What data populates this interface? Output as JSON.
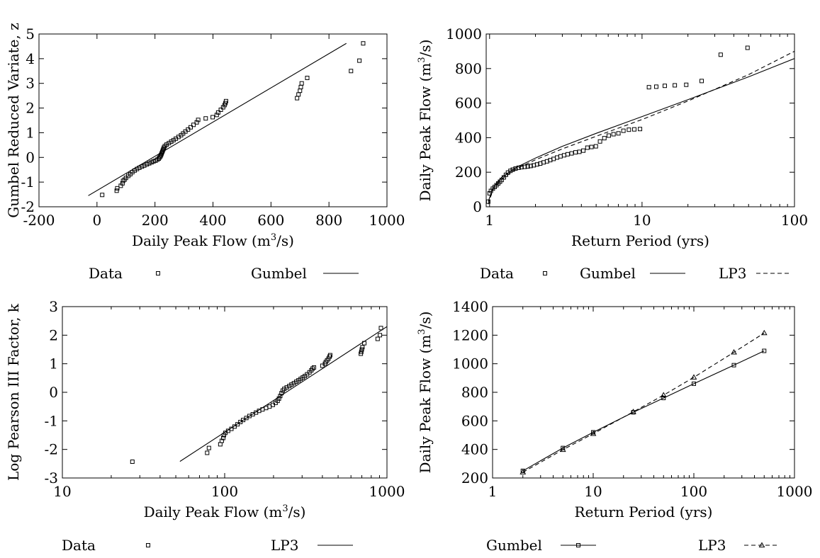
{
  "chart_data": [
    {
      "type": "scatter",
      "xlabel": "Daily Peak Flow (m³/s)",
      "ylabel": "Gumbel Reduced Variate, z",
      "xlim": [
        -200,
        1000
      ],
      "ylim": [
        -2,
        5
      ],
      "x_scale": "linear",
      "y_scale": "linear",
      "xticks": [
        -200,
        0,
        200,
        400,
        600,
        800,
        1000
      ],
      "yticks": [
        -2,
        -1,
        0,
        1,
        2,
        3,
        4,
        5
      ],
      "xtick_labels": [
        "-200",
        "0",
        "200",
        "400",
        "600",
        "800",
        "1000"
      ],
      "ytick_labels": [
        "-2",
        "-1",
        "0",
        "1",
        "2",
        "3",
        "4",
        "5"
      ],
      "grid": false,
      "legend_position": "below",
      "series": [
        {
          "name": "Data",
          "marker": "square",
          "points": [
            [
              18,
              -1.52
            ],
            [
              68,
              -1.35
            ],
            [
              70,
              -1.25
            ],
            [
              82,
              -1.15
            ],
            [
              88,
              -1.05
            ],
            [
              90,
              -0.95
            ],
            [
              95,
              -0.9
            ],
            [
              100,
              -0.83
            ],
            [
              108,
              -0.75
            ],
            [
              115,
              -0.68
            ],
            [
              122,
              -0.6
            ],
            [
              130,
              -0.53
            ],
            [
              138,
              -0.47
            ],
            [
              146,
              -0.42
            ],
            [
              155,
              -0.37
            ],
            [
              163,
              -0.33
            ],
            [
              172,
              -0.28
            ],
            [
              180,
              -0.24
            ],
            [
              188,
              -0.2
            ],
            [
              195,
              -0.16
            ],
            [
              202,
              -0.13
            ],
            [
              208,
              -0.09
            ],
            [
              213,
              -0.05
            ],
            [
              216,
              0.0
            ],
            [
              219,
              0.05
            ],
            [
              221,
              0.1
            ],
            [
              223,
              0.16
            ],
            [
              225,
              0.22
            ],
            [
              227,
              0.28
            ],
            [
              229,
              0.34
            ],
            [
              231,
              0.4
            ],
            [
              234,
              0.46
            ],
            [
              240,
              0.52
            ],
            [
              248,
              0.58
            ],
            [
              256,
              0.64
            ],
            [
              264,
              0.7
            ],
            [
              272,
              0.76
            ],
            [
              281,
              0.83
            ],
            [
              290,
              0.9
            ],
            [
              297,
              0.97
            ],
            [
              305,
              1.05
            ],
            [
              314,
              1.13
            ],
            [
              323,
              1.22
            ],
            [
              333,
              1.32
            ],
            [
              344,
              1.42
            ],
            [
              349,
              1.52
            ],
            [
              375,
              1.58
            ],
            [
              399,
              1.63
            ],
            [
              413,
              1.72
            ],
            [
              418,
              1.82
            ],
            [
              427,
              1.93
            ],
            [
              435,
              2.03
            ],
            [
              440,
              2.12
            ],
            [
              443,
              2.2
            ],
            [
              445,
              2.28
            ],
            [
              690,
              2.4
            ],
            [
              695,
              2.55
            ],
            [
              700,
              2.7
            ],
            [
              703,
              2.85
            ],
            [
              706,
              3.0
            ],
            [
              725,
              3.22
            ],
            [
              876,
              3.5
            ],
            [
              905,
              3.92
            ],
            [
              918,
              4.62
            ]
          ]
        },
        {
          "name": "Gumbel",
          "style": "solid",
          "x": [
            -30,
            860
          ],
          "y": [
            -1.55,
            4.62
          ]
        }
      ]
    },
    {
      "type": "scatter",
      "xlabel": "Return Period (yrs)",
      "ylabel": "Daily Peak Flow (m³/s)",
      "xlim": [
        0.95,
        100
      ],
      "ylim": [
        0,
        1000
      ],
      "x_scale": "log",
      "y_scale": "linear",
      "xticks": [
        1,
        10,
        100
      ],
      "yticks": [
        0,
        200,
        400,
        600,
        800,
        1000
      ],
      "xtick_labels": [
        "1",
        "10",
        "100"
      ],
      "ytick_labels": [
        "0",
        "200",
        "400",
        "600",
        "800",
        "1000"
      ],
      "grid": false,
      "legend_position": "below",
      "series": [
        {
          "name": "Data",
          "marker": "square",
          "points": [
            [
              0.98,
              30
            ],
            [
              1.0,
              78
            ],
            [
              1.02,
              92
            ],
            [
              1.05,
              105
            ],
            [
              1.08,
              115
            ],
            [
              1.11,
              125
            ],
            [
              1.14,
              135
            ],
            [
              1.17,
              145
            ],
            [
              1.2,
              155
            ],
            [
              1.24,
              170
            ],
            [
              1.28,
              185
            ],
            [
              1.32,
              198
            ],
            [
              1.37,
              208
            ],
            [
              1.42,
              215
            ],
            [
              1.48,
              221
            ],
            [
              1.55,
              226
            ],
            [
              1.62,
              229
            ],
            [
              1.7,
              231
            ],
            [
              1.78,
              233
            ],
            [
              1.86,
              236
            ],
            [
              1.95,
              240
            ],
            [
              2.05,
              245
            ],
            [
              2.15,
              250
            ],
            [
              2.26,
              257
            ],
            [
              2.38,
              263
            ],
            [
              2.5,
              270
            ],
            [
              2.63,
              277
            ],
            [
              2.77,
              285
            ],
            [
              2.92,
              292
            ],
            [
              3.08,
              298
            ],
            [
              3.25,
              304
            ],
            [
              3.45,
              309
            ],
            [
              3.66,
              315
            ],
            [
              3.88,
              318
            ],
            [
              4.12,
              325
            ],
            [
              4.38,
              342
            ],
            [
              4.66,
              346
            ],
            [
              4.98,
              350
            ],
            [
              5.3,
              378
            ],
            [
              5.66,
              397
            ],
            [
              6.05,
              412
            ],
            [
              6.5,
              420
            ],
            [
              7.0,
              425
            ],
            [
              7.55,
              440
            ],
            [
              8.2,
              446
            ],
            [
              8.9,
              448
            ],
            [
              9.7,
              450
            ],
            [
              11.1,
              692
            ],
            [
              12.4,
              695
            ],
            [
              14.1,
              700
            ],
            [
              16.4,
              703
            ],
            [
              19.5,
              706
            ],
            [
              24.6,
              728
            ],
            [
              32.8,
              880
            ],
            [
              49.2,
              920
            ]
          ]
        },
        {
          "name": "Gumbel",
          "style": "solid",
          "x": [
            0.98,
            1.05,
            1.2,
            1.5,
            2,
            3,
            5,
            10,
            20,
            50,
            100
          ],
          "y": [
            30,
            108,
            170,
            228,
            282,
            350,
            425,
            522,
            620,
            752,
            858
          ]
        },
        {
          "name": "LP3",
          "style": "dashed",
          "x": [
            0.98,
            1.05,
            1.2,
            1.5,
            2,
            3,
            5,
            10,
            20,
            50,
            100
          ],
          "y": [
            15,
            98,
            160,
            220,
            272,
            335,
            408,
            505,
            612,
            765,
            900
          ]
        }
      ]
    },
    {
      "type": "scatter",
      "xlabel": "Daily Peak Flow (m³/s)",
      "ylabel": "Log Pearson III Factor, k",
      "xlim": [
        10,
        1000
      ],
      "ylim": [
        -3,
        3
      ],
      "x_scale": "log",
      "y_scale": "linear",
      "xticks": [
        10,
        100,
        1000
      ],
      "yticks": [
        -3,
        -2,
        -1,
        0,
        1,
        2,
        3
      ],
      "xtick_labels": [
        "10",
        "100",
        "1000"
      ],
      "ytick_labels": [
        "-3",
        "-2",
        "-1",
        "0",
        "1",
        "2",
        "3"
      ],
      "grid": false,
      "legend_position": "below",
      "series": [
        {
          "name": "Data",
          "marker": "square",
          "points": [
            [
              27,
              -2.43
            ],
            [
              78,
              -2.12
            ],
            [
              80,
              -1.95
            ],
            [
              94,
              -1.82
            ],
            [
              96,
              -1.7
            ],
            [
              98,
              -1.6
            ],
            [
              99,
              -1.5
            ],
            [
              101,
              -1.42
            ],
            [
              105,
              -1.35
            ],
            [
              110,
              -1.28
            ],
            [
              115,
              -1.2
            ],
            [
              120,
              -1.12
            ],
            [
              125,
              -1.04
            ],
            [
              130,
              -0.97
            ],
            [
              136,
              -0.9
            ],
            [
              142,
              -0.83
            ],
            [
              149,
              -0.77
            ],
            [
              156,
              -0.71
            ],
            [
              163,
              -0.65
            ],
            [
              171,
              -0.6
            ],
            [
              180,
              -0.55
            ],
            [
              189,
              -0.5
            ],
            [
              198,
              -0.44
            ],
            [
              206,
              -0.37
            ],
            [
              212,
              -0.3
            ],
            [
              216,
              -0.22
            ],
            [
              220,
              -0.13
            ],
            [
              224,
              -0.03
            ],
            [
              228,
              0.06
            ],
            [
              233,
              0.12
            ],
            [
              241,
              0.17
            ],
            [
              250,
              0.22
            ],
            [
              258,
              0.27
            ],
            [
              267,
              0.32
            ],
            [
              276,
              0.37
            ],
            [
              285,
              0.42
            ],
            [
              294,
              0.47
            ],
            [
              303,
              0.52
            ],
            [
              312,
              0.57
            ],
            [
              322,
              0.63
            ],
            [
              333,
              0.7
            ],
            [
              342,
              0.77
            ],
            [
              348,
              0.83
            ],
            [
              355,
              0.87
            ],
            [
              400,
              0.93
            ],
            [
              415,
              1.0
            ],
            [
              420,
              1.06
            ],
            [
              428,
              1.12
            ],
            [
              436,
              1.18
            ],
            [
              443,
              1.25
            ],
            [
              447,
              1.3
            ],
            [
              690,
              1.35
            ],
            [
              695,
              1.42
            ],
            [
              700,
              1.5
            ],
            [
              706,
              1.58
            ],
            [
              725,
              1.72
            ],
            [
              876,
              1.87
            ],
            [
              905,
              2.0
            ],
            [
              918,
              2.25
            ]
          ]
        },
        {
          "name": "LP3",
          "style": "solid",
          "x": [
            53,
            1000
          ],
          "y": [
            -2.42,
            2.3
          ]
        }
      ]
    },
    {
      "type": "line",
      "xlabel": "Return Period (yrs)",
      "ylabel": "Daily Peak Flow (m³/s)",
      "xlim": [
        1,
        1000
      ],
      "ylim": [
        200,
        1400
      ],
      "x_scale": "log",
      "y_scale": "linear",
      "xticks": [
        1,
        10,
        100,
        1000
      ],
      "yticks": [
        200,
        400,
        600,
        800,
        1000,
        1200,
        1400
      ],
      "xtick_labels": [
        "1",
        "10",
        "100",
        "1000"
      ],
      "ytick_labels": [
        "200",
        "400",
        "600",
        "800",
        "1000",
        "1200",
        "1400"
      ],
      "grid": false,
      "legend_position": "below",
      "series": [
        {
          "name": "Gumbel",
          "style": "solid",
          "marker": "square",
          "x": [
            2,
            5,
            10,
            25,
            50,
            100,
            250,
            500
          ],
          "y": [
            250,
            410,
            520,
            660,
            760,
            860,
            990,
            1090
          ]
        },
        {
          "name": "LP3",
          "style": "dashed",
          "marker": "triangle",
          "x": [
            2,
            5,
            10,
            25,
            50,
            100,
            250,
            500
          ],
          "y": [
            240,
            398,
            510,
            663,
            780,
            905,
            1080,
            1215
          ]
        }
      ]
    }
  ]
}
